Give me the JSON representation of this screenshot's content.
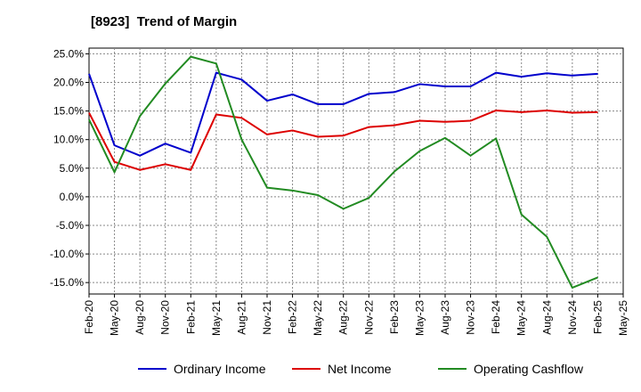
{
  "chart_data": {
    "type": "line",
    "title": "[8923]  Trend of Margin",
    "xlabel": "",
    "ylabel": "",
    "x": [
      "Feb-20",
      "May-20",
      "Aug-20",
      "Nov-20",
      "Feb-21",
      "May-21",
      "Aug-21",
      "Nov-21",
      "Feb-22",
      "May-22",
      "Aug-22",
      "Nov-22",
      "Feb-23",
      "May-23",
      "Aug-23",
      "Nov-23",
      "Feb-24",
      "May-24",
      "Aug-24",
      "Nov-24",
      "Feb-25",
      "May-25"
    ],
    "y_ticks": [
      "25.0%",
      "20.0%",
      "15.0%",
      "10.0%",
      "5.0%",
      "0.0%",
      "-5.0%",
      "-10.0%",
      "-15.0%"
    ],
    "ylim": [
      -17,
      26
    ],
    "grid": true,
    "legend_position": "bottom",
    "series": [
      {
        "name": "Ordinary Income",
        "color": "#0000cc",
        "values": [
          21.5,
          9.0,
          7.2,
          9.3,
          7.7,
          21.7,
          20.5,
          16.8,
          17.9,
          16.2,
          16.2,
          18.0,
          18.3,
          19.7,
          19.3,
          19.3,
          21.7,
          21.0,
          21.6,
          21.2,
          21.5,
          null
        ]
      },
      {
        "name": "Net Income",
        "color": "#dd0000",
        "values": [
          14.7,
          6.1,
          4.7,
          5.7,
          4.7,
          14.4,
          13.8,
          10.9,
          11.6,
          10.5,
          10.7,
          12.2,
          12.5,
          13.3,
          13.1,
          13.3,
          15.1,
          14.8,
          15.1,
          14.7,
          14.8,
          null
        ]
      },
      {
        "name": "Operating Cashflow",
        "color": "#228b22",
        "values": [
          13.5,
          4.3,
          14.1,
          19.8,
          24.5,
          23.3,
          10.0,
          1.6,
          1.1,
          0.3,
          -2.1,
          -0.2,
          4.4,
          8.0,
          10.3,
          7.2,
          10.2,
          -3.1,
          -7.0,
          -15.9,
          -14.1,
          null
        ]
      }
    ]
  }
}
